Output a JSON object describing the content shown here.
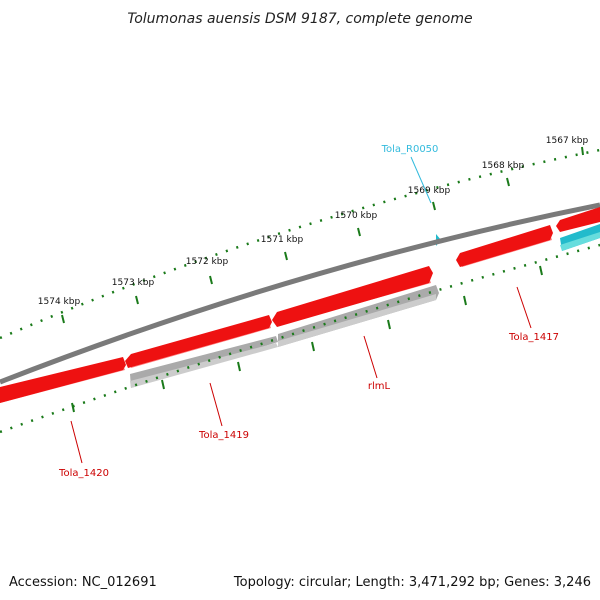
{
  "title": "Tolumonas auensis DSM 9187, complete genome",
  "accession": "Accession: NC_012691",
  "summary": "Topology: circular; Length: 3,471,292 bp; Genes: 3,246",
  "ruler_labels": [
    "1567 kbp",
    "1568 kbp",
    "1569 kbp",
    "1570 kbp",
    "1571 kbp",
    "1572 kbp",
    "1573 kbp",
    "1574 kbp"
  ],
  "gene_labels": {
    "rna": "Tola_R0050",
    "g1417": "Tola_1417",
    "rlmL": "rlmL",
    "g1419": "Tola_1419",
    "g1420": "Tola_1420"
  },
  "colors": {
    "cds": "#ee1111",
    "cds_shadow": "#ff8080",
    "pseudo": "#aaaaaa",
    "rna": "#22bbcc",
    "backbone": "#7a7a7a",
    "tick": "#1a7a1a",
    "label_red": "#cc0000",
    "label_cyan": "#33bbdd"
  }
}
